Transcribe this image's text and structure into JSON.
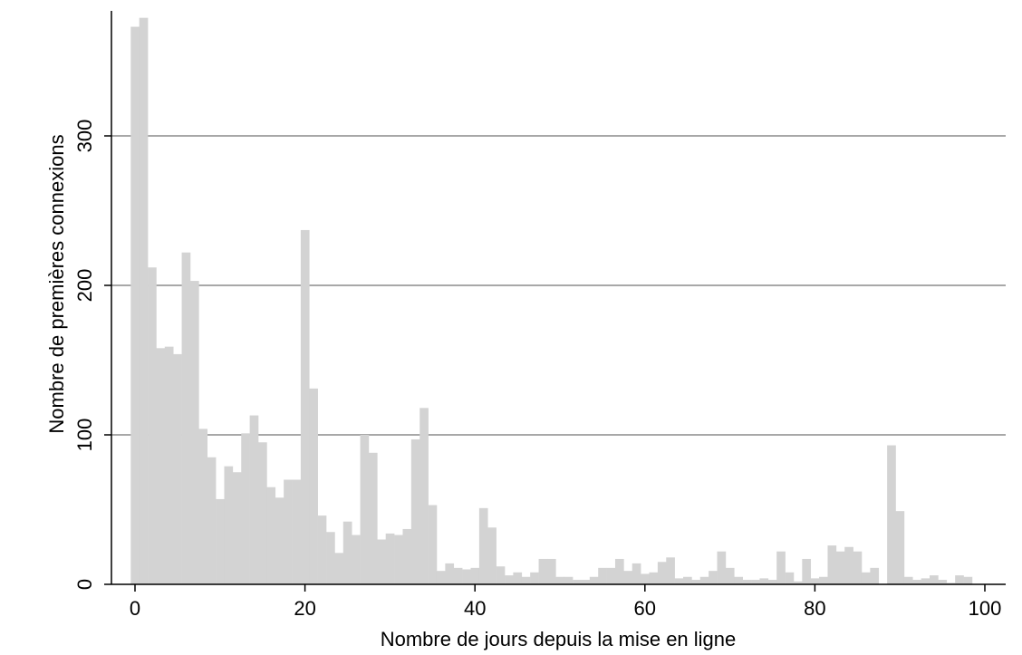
{
  "chart_data": {
    "type": "bar",
    "title": "",
    "xlabel": "Nombre de jours depuis la mise en ligne",
    "ylabel": "Nombre de premières connexions",
    "xlim": [
      -3,
      100
    ],
    "ylim": [
      0,
      380
    ],
    "xticks": [
      0,
      20,
      40,
      60,
      80,
      100
    ],
    "yticks": [
      0,
      100,
      200,
      300
    ],
    "grid": "horizontal",
    "legend": "none",
    "colors": {
      "bar": "#d3d3d3",
      "grid": "#8c8c8c",
      "axis": "#000000"
    },
    "x": [
      0,
      1,
      2,
      3,
      4,
      5,
      6,
      7,
      8,
      9,
      10,
      11,
      12,
      13,
      14,
      15,
      16,
      17,
      18,
      19,
      20,
      21,
      22,
      23,
      24,
      25,
      26,
      27,
      28,
      29,
      30,
      31,
      32,
      33,
      34,
      35,
      36,
      37,
      38,
      39,
      40,
      41,
      42,
      43,
      44,
      45,
      46,
      47,
      48,
      49,
      50,
      51,
      52,
      53,
      54,
      55,
      56,
      57,
      58,
      59,
      60,
      61,
      62,
      63,
      64,
      65,
      66,
      67,
      68,
      69,
      70,
      71,
      72,
      73,
      74,
      75,
      76,
      77,
      78,
      79,
      80,
      81,
      82,
      83,
      84,
      85,
      86,
      87,
      88,
      89,
      90,
      91,
      92,
      93,
      94,
      95,
      96,
      97,
      98
    ],
    "values": [
      373,
      379,
      212,
      158,
      159,
      154,
      222,
      203,
      104,
      85,
      57,
      79,
      75,
      101,
      113,
      95,
      65,
      58,
      70,
      70,
      237,
      131,
      46,
      35,
      21,
      42,
      33,
      100,
      88,
      30,
      34,
      33,
      37,
      97,
      118,
      53,
      9,
      14,
      11,
      10,
      11,
      51,
      38,
      12,
      6,
      8,
      5,
      8,
      17,
      17,
      5,
      5,
      3,
      3,
      5,
      11,
      11,
      17,
      9,
      14,
      7,
      8,
      15,
      18,
      4,
      5,
      3,
      5,
      9,
      22,
      11,
      5,
      3,
      3,
      4,
      3,
      22,
      8,
      2,
      17,
      4,
      5,
      26,
      22,
      25,
      22,
      8,
      11,
      0,
      93,
      49,
      5,
      3,
      4,
      6,
      3,
      1,
      6,
      5
    ]
  }
}
